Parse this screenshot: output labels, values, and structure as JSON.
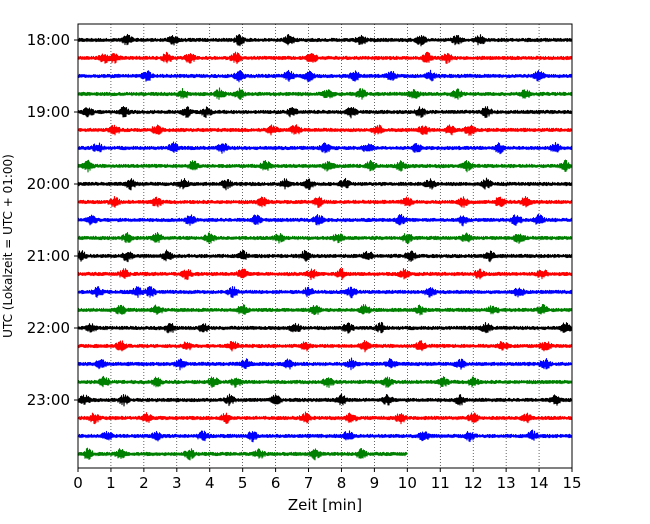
{
  "chart_data": {
    "type": "line",
    "title": "",
    "xlabel": "Zeit  [min]",
    "ylabel": "UTC (Lokalzeit = UTC + 01:00)",
    "xlim": [
      0,
      15
    ],
    "x_ticks": [
      "0",
      "1",
      "2",
      "3",
      "4",
      "5",
      "6",
      "7",
      "8",
      "9",
      "10",
      "11",
      "12",
      "13",
      "14",
      "15"
    ],
    "y_ticks": [
      "18:00",
      "19:00",
      "20:00",
      "21:00",
      "22:00",
      "23:00"
    ],
    "grid": "vertical dotted lines at each minute",
    "legend": "none",
    "trace_colors": [
      "#000000",
      "#ff0000",
      "#0000ff",
      "#008000"
    ],
    "series": [
      {
        "start": "18:00",
        "color": "#000000",
        "x_start": 0,
        "x_end": 15,
        "bursts": [
          1.5,
          2.9,
          4.9,
          6.4,
          8.6,
          10.4,
          11.5,
          12.2
        ]
      },
      {
        "start": "18:15",
        "color": "#ff0000",
        "x_start": 0,
        "x_end": 15,
        "bursts": [
          0.8,
          1.1,
          2.7,
          3.4,
          4.8,
          7.1,
          10.6,
          11.2
        ]
      },
      {
        "start": "18:30",
        "color": "#0000ff",
        "x_start": 0,
        "x_end": 15,
        "bursts": [
          2.1,
          4.9,
          6.4,
          7.0,
          8.4,
          9.5,
          10.7,
          14.0
        ]
      },
      {
        "start": "18:45",
        "color": "#008000",
        "x_start": 0,
        "x_end": 15,
        "bursts": [
          3.2,
          4.3,
          4.9,
          7.6,
          8.6,
          10.2,
          11.5,
          13.6
        ]
      },
      {
        "start": "19:00",
        "color": "#000000",
        "x_start": 0,
        "x_end": 15,
        "bursts": [
          0.3,
          1.4,
          3.3,
          3.9,
          6.5,
          8.3,
          10.4,
          12.4
        ]
      },
      {
        "start": "19:15",
        "color": "#ff0000",
        "x_start": 0,
        "x_end": 15,
        "bursts": [
          1.1,
          2.4,
          5.9,
          6.6,
          9.1,
          10.5,
          11.3,
          11.9
        ]
      },
      {
        "start": "19:30",
        "color": "#0000ff",
        "x_start": 0,
        "x_end": 15,
        "bursts": [
          0.6,
          2.9,
          4.4,
          7.5,
          8.8,
          10.3,
          12.8,
          14.5
        ]
      },
      {
        "start": "19:45",
        "color": "#008000",
        "x_start": 0,
        "x_end": 15,
        "bursts": [
          0.3,
          3.5,
          5.7,
          7.6,
          8.9,
          9.8,
          11.8,
          14.8
        ]
      },
      {
        "start": "20:00",
        "color": "#000000",
        "x_start": 0,
        "x_end": 15,
        "bursts": [
          1.6,
          3.2,
          4.5,
          6.3,
          7.0,
          8.1,
          10.7,
          12.4
        ]
      },
      {
        "start": "20:15",
        "color": "#ff0000",
        "x_start": 0,
        "x_end": 15,
        "bursts": [
          1.1,
          2.4,
          5.6,
          7.3,
          10.0,
          11.7,
          12.8,
          13.6
        ]
      },
      {
        "start": "20:30",
        "color": "#0000ff",
        "x_start": 0,
        "x_end": 15,
        "bursts": [
          0.4,
          3.4,
          5.4,
          7.3,
          9.8,
          11.7,
          13.3,
          14.0
        ]
      },
      {
        "start": "20:45",
        "color": "#008000",
        "x_start": 0,
        "x_end": 15,
        "bursts": [
          1.5,
          2.4,
          4.0,
          6.1,
          7.9,
          10.0,
          11.8,
          13.4
        ]
      },
      {
        "start": "21:00",
        "color": "#000000",
        "x_start": 0,
        "x_end": 15,
        "bursts": [
          0.1,
          1.5,
          2.7,
          5.0,
          6.9,
          8.8,
          10.1,
          12.5
        ]
      },
      {
        "start": "21:15",
        "color": "#ff0000",
        "x_start": 0,
        "x_end": 15,
        "bursts": [
          1.4,
          3.3,
          5.0,
          7.1,
          8.0,
          9.9,
          12.2,
          14.1
        ]
      },
      {
        "start": "21:30",
        "color": "#0000ff",
        "x_start": 0,
        "x_end": 15,
        "bursts": [
          0.6,
          1.8,
          2.2,
          4.7,
          7.0,
          8.3,
          10.7,
          13.4
        ]
      },
      {
        "start": "21:45",
        "color": "#008000",
        "x_start": 0,
        "x_end": 15,
        "bursts": [
          1.3,
          2.4,
          5.0,
          7.2,
          8.7,
          10.4,
          12.6,
          14.1
        ]
      },
      {
        "start": "22:00",
        "color": "#000000",
        "x_start": 0,
        "x_end": 15,
        "bursts": [
          0.4,
          2.8,
          3.8,
          6.6,
          8.2,
          9.2,
          12.4,
          14.8
        ]
      },
      {
        "start": "22:15",
        "color": "#ff0000",
        "x_start": 0,
        "x_end": 15,
        "bursts": [
          1.3,
          3.3,
          4.7,
          6.9,
          8.7,
          10.4,
          12.9,
          14.2
        ]
      },
      {
        "start": "22:30",
        "color": "#0000ff",
        "x_start": 0,
        "x_end": 15,
        "bursts": [
          0.7,
          3.1,
          5.1,
          6.4,
          8.3,
          9.5,
          11.6,
          14.2
        ]
      },
      {
        "start": "22:45",
        "color": "#008000",
        "x_start": 0,
        "x_end": 15,
        "bursts": [
          0.8,
          2.4,
          4.1,
          4.8,
          7.6,
          9.4,
          11.1,
          12.0
        ]
      },
      {
        "start": "23:00",
        "color": "#000000",
        "x_start": 0,
        "x_end": 15,
        "bursts": [
          0.2,
          1.4,
          4.6,
          6.0,
          8.0,
          9.4,
          11.6,
          14.5
        ]
      },
      {
        "start": "23:15",
        "color": "#ff0000",
        "x_start": 0,
        "x_end": 15,
        "bursts": [
          0.5,
          2.1,
          4.5,
          6.9,
          8.3,
          9.8,
          12.0,
          13.6
        ]
      },
      {
        "start": "23:30",
        "color": "#0000ff",
        "x_start": 0,
        "x_end": 15,
        "bursts": [
          0.9,
          2.4,
          3.8,
          5.3,
          8.2,
          10.5,
          11.9,
          13.8
        ]
      },
      {
        "start": "23:45",
        "color": "#008000",
        "x_start": 0,
        "x_end": 10,
        "bursts": [
          0.3,
          1.3,
          3.4,
          5.5,
          7.2,
          8.6
        ]
      }
    ]
  }
}
